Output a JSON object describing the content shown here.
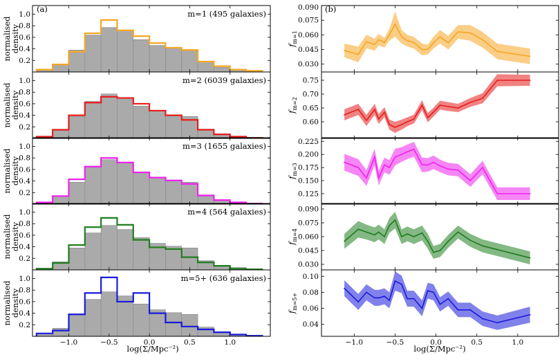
{
  "colors": {
    "m1": "#f5a623",
    "m2": "#e61c1c",
    "m3": "#ee22ee",
    "m4": "#1f7d1f",
    "m5": "#1a1adb",
    "gray_fill": "#aaaaaa",
    "gray_edge": "#888888"
  },
  "chart_data": [
    {
      "type": "bar",
      "panel_label": "(a)",
      "title": "",
      "xlabel": "log(Σ/Mpc⁻²)",
      "ylabel": "normalised density",
      "xlim": [
        -1.45,
        1.5
      ],
      "ylim": [
        0,
        1.15
      ],
      "xticks": [
        -1.0,
        -0.5,
        0.0,
        0.5,
        1.0
      ],
      "xtick_labels": [
        "−1.0",
        "−0.5",
        "0.0",
        "0.5",
        "1.0"
      ],
      "yticks": [
        0.2,
        0.4,
        0.6,
        0.8,
        1.0
      ],
      "ytick_labels": [
        "0.2",
        "0.4",
        "0.6",
        "0.8",
        "1.0"
      ],
      "bin_edges": [
        -1.4,
        -1.2,
        -1.0,
        -0.8,
        -0.6,
        -0.4,
        -0.2,
        0.0,
        0.2,
        0.4,
        0.6,
        0.8,
        1.0,
        1.2,
        1.4
      ],
      "all_galaxies_ref": [
        0.03,
        0.14,
        0.38,
        0.64,
        0.77,
        0.7,
        0.56,
        0.46,
        0.41,
        0.38,
        0.16,
        0.08,
        0.04,
        0.02
      ],
      "series": [
        {
          "name": "m=1",
          "label": "m=1 (495 galaxies)",
          "color_key": "m1",
          "values": [
            0.04,
            0.13,
            0.35,
            0.67,
            0.9,
            0.72,
            0.62,
            0.5,
            0.42,
            0.38,
            0.18,
            0.1,
            0.04,
            0.02
          ]
        },
        {
          "name": "m=2",
          "label": "m=2 (6039 galaxies)",
          "color_key": "m2",
          "values": [
            0.03,
            0.15,
            0.4,
            0.62,
            0.72,
            0.7,
            0.6,
            0.48,
            0.4,
            0.32,
            0.15,
            0.07,
            0.03,
            0.01
          ]
        },
        {
          "name": "m=3",
          "label": "m=3 (1655 galaxies)",
          "color_key": "m3",
          "values": [
            0.03,
            0.14,
            0.43,
            0.65,
            0.8,
            0.72,
            0.55,
            0.46,
            0.41,
            0.35,
            0.15,
            0.07,
            0.03,
            0.01
          ]
        },
        {
          "name": "m=4",
          "label": "m=4 (564 galaxies)",
          "color_key": "m4",
          "values": [
            0.02,
            0.12,
            0.43,
            0.74,
            0.9,
            0.78,
            0.52,
            0.39,
            0.36,
            0.22,
            0.13,
            0.07,
            0.02,
            0.01
          ]
        },
        {
          "name": "m=5+",
          "label": "m=5+ (636 galaxies)",
          "color_key": "m5",
          "values": [
            0.05,
            0.1,
            0.38,
            0.75,
            1.02,
            0.6,
            0.75,
            0.4,
            0.24,
            0.17,
            0.12,
            0.07,
            0.03,
            0.01
          ]
        }
      ]
    },
    {
      "type": "line",
      "panel_label": "(b)",
      "title": "",
      "xlabel": "log(Σ/Mpc⁻²)",
      "xlim": [
        -1.4,
        1.5
      ],
      "xticks": [
        -1.0,
        -0.5,
        0.0,
        0.5,
        1.0
      ],
      "xtick_labels": [
        "−1.0",
        "−0.5",
        "0.0",
        "0.5",
        "1.0"
      ],
      "x": [
        -1.12,
        -0.95,
        -0.85,
        -0.75,
        -0.7,
        -0.63,
        -0.57,
        -0.5,
        -0.42,
        -0.35,
        -0.27,
        -0.17,
        -0.1,
        -0.03,
        0.05,
        0.15,
        0.27,
        0.42,
        0.57,
        0.75,
        1.15
      ],
      "series": [
        {
          "name": "m=1",
          "ylabel": "f_m=1",
          "ylabel_main": "f",
          "ylabel_sub": "m=1",
          "color_key": "m1",
          "ylim": [
            0.022,
            0.09
          ],
          "yticks": [
            0.03,
            0.045,
            0.06,
            0.075,
            0.09
          ],
          "ytick_labels": [
            "0.030",
            "0.045",
            "0.060",
            "0.075"
          ],
          "top_tick_label": "0.090",
          "y": [
            0.044,
            0.04,
            0.053,
            0.05,
            0.055,
            0.052,
            0.06,
            0.071,
            0.058,
            0.054,
            0.052,
            0.045,
            0.045,
            0.052,
            0.058,
            0.052,
            0.063,
            0.062,
            0.055,
            0.043,
            0.038
          ],
          "err": [
            0.007,
            0.008,
            0.007,
            0.006,
            0.006,
            0.005,
            0.006,
            0.013,
            0.007,
            0.006,
            0.006,
            0.006,
            0.005,
            0.006,
            0.007,
            0.007,
            0.007,
            0.008,
            0.008,
            0.008,
            0.008
          ]
        },
        {
          "name": "m=2",
          "ylabel": "f_m=2",
          "ylabel_main": "f",
          "ylabel_sub": "m=2",
          "color_key": "m2",
          "ylim": [
            0.54,
            0.78
          ],
          "yticks": [
            0.6,
            0.65,
            0.7,
            0.75
          ],
          "ytick_labels": [
            "0.60",
            "0.65",
            "0.70",
            "0.75"
          ],
          "y": [
            0.625,
            0.645,
            0.605,
            0.645,
            0.61,
            0.635,
            0.59,
            0.58,
            0.59,
            0.6,
            0.61,
            0.66,
            0.615,
            0.635,
            0.66,
            0.655,
            0.65,
            0.67,
            0.685,
            0.75,
            0.75
          ],
          "err": [
            0.02,
            0.02,
            0.02,
            0.02,
            0.018,
            0.018,
            0.018,
            0.02,
            0.018,
            0.016,
            0.016,
            0.018,
            0.017,
            0.016,
            0.016,
            0.016,
            0.015,
            0.016,
            0.018,
            0.022,
            0.02
          ]
        },
        {
          "name": "m=3",
          "ylabel": "f_m=3",
          "ylabel_main": "f",
          "ylabel_sub": "m=3",
          "color_key": "m3",
          "ylim": [
            0.105,
            0.232
          ],
          "yticks": [
            0.125,
            0.15,
            0.175,
            0.2,
            0.225
          ],
          "ytick_labels": [
            "0.125",
            "0.150",
            "0.175",
            "0.200",
            "0.225"
          ],
          "y": [
            0.185,
            0.175,
            0.155,
            0.195,
            0.155,
            0.18,
            0.175,
            0.195,
            0.2,
            0.205,
            0.21,
            0.18,
            0.18,
            0.185,
            0.178,
            0.172,
            0.17,
            0.15,
            0.175,
            0.125,
            0.125
          ],
          "err": [
            0.016,
            0.016,
            0.015,
            0.016,
            0.014,
            0.014,
            0.014,
            0.016,
            0.014,
            0.014,
            0.014,
            0.014,
            0.013,
            0.013,
            0.012,
            0.012,
            0.012,
            0.012,
            0.013,
            0.012,
            0.012
          ]
        },
        {
          "name": "m=4",
          "ylabel": "f_m=4",
          "ylabel_main": "f",
          "ylabel_sub": "m=4",
          "color_key": "m4",
          "ylim": [
            0.024,
            0.096
          ],
          "yticks": [
            0.03,
            0.045,
            0.06,
            0.075,
            0.09
          ],
          "ytick_labels": [
            "0.030",
            "0.045",
            "0.060",
            "0.075",
            "0.090"
          ],
          "y": [
            0.055,
            0.068,
            0.065,
            0.062,
            0.065,
            0.06,
            0.072,
            0.078,
            0.06,
            0.063,
            0.06,
            0.064,
            0.055,
            0.043,
            0.045,
            0.055,
            0.065,
            0.056,
            0.05,
            0.046,
            0.037
          ],
          "err": [
            0.008,
            0.009,
            0.008,
            0.008,
            0.008,
            0.008,
            0.008,
            0.009,
            0.008,
            0.008,
            0.008,
            0.008,
            0.008,
            0.007,
            0.007,
            0.007,
            0.007,
            0.007,
            0.007,
            0.007,
            0.007
          ]
        },
        {
          "name": "m=5+",
          "ylabel": "f_m=5+",
          "ylabel_main": "f",
          "ylabel_sub": "m=5+",
          "color_key": "m5",
          "ylim": [
            0.025,
            0.108
          ],
          "yticks": [
            0.04,
            0.06,
            0.08,
            0.1
          ],
          "ytick_labels": [
            "0.04",
            "0.06",
            "0.08",
            "0.10"
          ],
          "y": [
            0.085,
            0.068,
            0.08,
            0.073,
            0.073,
            0.075,
            0.07,
            0.094,
            0.09,
            0.072,
            0.072,
            0.06,
            0.082,
            0.08,
            0.065,
            0.072,
            0.058,
            0.058,
            0.047,
            0.042,
            0.052
          ],
          "err": [
            0.01,
            0.01,
            0.01,
            0.01,
            0.01,
            0.01,
            0.01,
            0.012,
            0.011,
            0.01,
            0.01,
            0.01,
            0.01,
            0.01,
            0.009,
            0.009,
            0.009,
            0.009,
            0.009,
            0.009,
            0.01
          ]
        }
      ]
    }
  ]
}
